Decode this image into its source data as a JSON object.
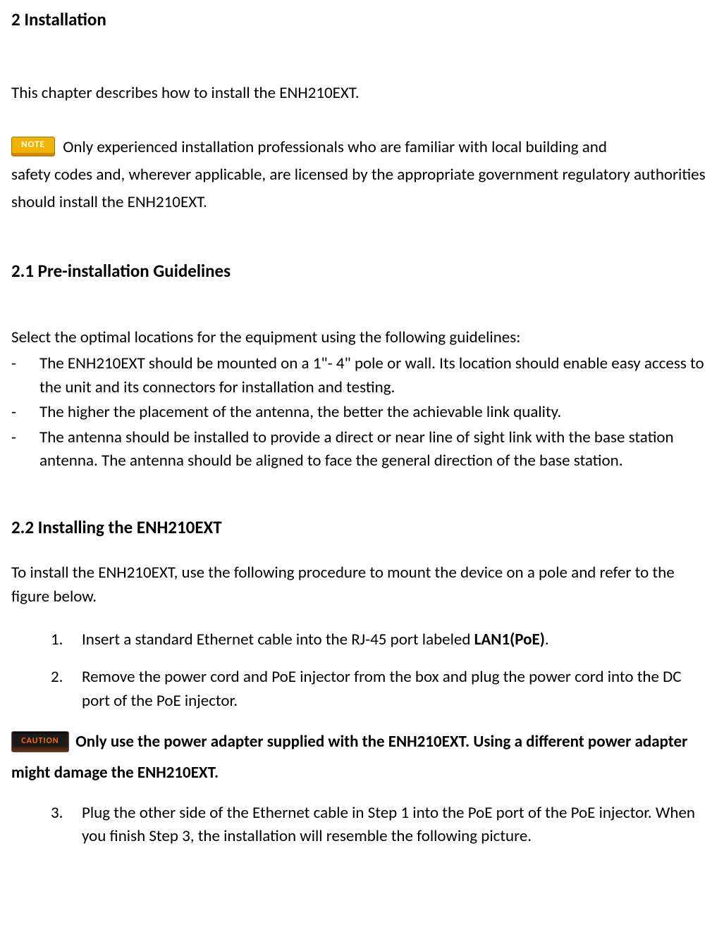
{
  "section": {
    "title": "2 Installation",
    "intro": "This chapter describes how to install the ENH210EXT.",
    "note_badge_text": "NOTE",
    "note_text_part1": " Only experienced installation professionals who are familiar with local building and",
    "note_text_part2": "safety codes and, wherever applicable, are licensed by the appropriate government regulatory authorities should install the ENH210EXT."
  },
  "sub1": {
    "title": "2.1 Pre-installation Guidelines",
    "intro": "Select the optimal locations for the equipment using the following guidelines:",
    "items": [
      "The ENH210EXT should be mounted on a 1\"- 4\" pole or wall.    Its location should enable easy access to the unit and its connectors for installation and testing.",
      "The higher the placement of the antenna, the better the achievable link quality.",
      "The antenna should be installed to provide a direct or near line of sight link with the base station antenna. The antenna should be aligned to face the general direction of the base station."
    ],
    "dash": "-"
  },
  "sub2": {
    "title": "2.2 Installing the ENH210EXT",
    "intro": "To install the ENH210EXT, use the following procedure to mount the device on a pole and refer to the figure below.",
    "steps": [
      {
        "num": "1.",
        "text_pre": "Insert a standard Ethernet cable into the RJ-45 port labeled ",
        "text_bold": "LAN1(PoE)",
        "text_post": "."
      },
      {
        "num": "2.",
        "text_pre": "Remove the power cord and PoE injector from the box and plug the power cord into the DC port of the PoE injector.",
        "text_bold": "",
        "text_post": ""
      },
      {
        "num": "3.",
        "text_pre": "Plug the other side of the Ethernet cable in Step 1 into the PoE port of the PoE injector. When you finish Step 3, the installation will resemble the following picture.",
        "text_bold": "",
        "text_post": ""
      }
    ],
    "caution_badge_text": "CAUTION",
    "caution_text": " Only use the power adapter supplied with the ENH210EXT. Using a different power adapter might damage the ENH210EXT."
  },
  "colors": {
    "note_bg": "#f0b400",
    "note_text": "#ffffff",
    "caution_bg": "#1a1a1a",
    "caution_text": "#ff6a00",
    "body_text": "#000000",
    "background": "#ffffff"
  }
}
